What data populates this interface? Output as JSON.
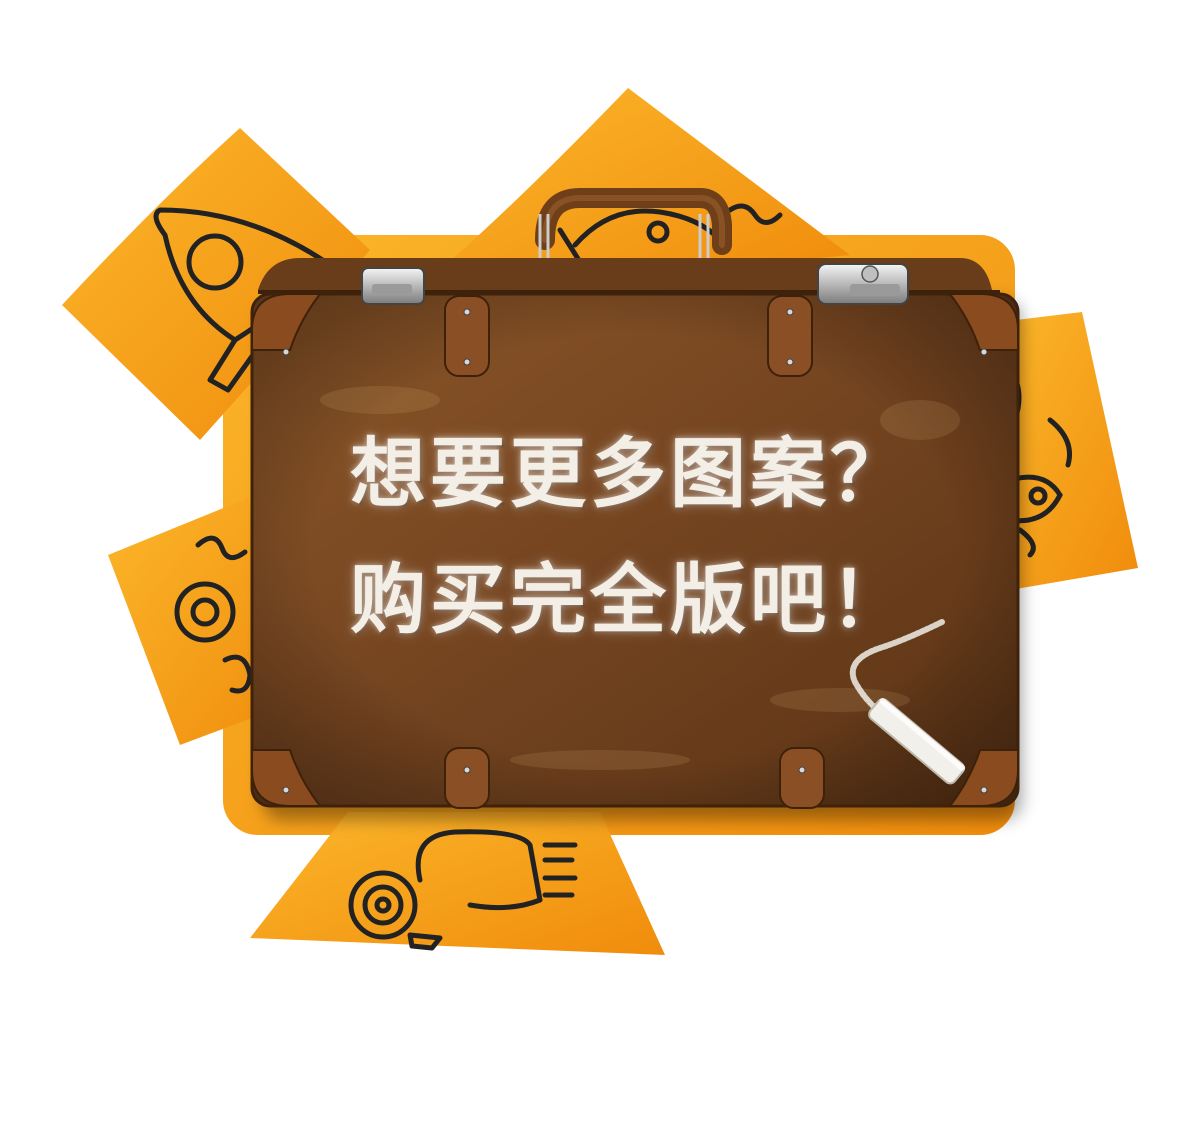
{
  "promo": {
    "line1": "想要更多图案？",
    "line2": "购买完全版吧！"
  },
  "colors": {
    "orange": "#f7a21a",
    "orange_dark": "#e8890a",
    "leather": "#7a4a22",
    "leather_dark": "#4e2c12",
    "strap": "#8a4f24",
    "doodle": "#222222",
    "chalk": "#f2f0ea"
  },
  "icons": [
    "rocket-icon",
    "fish-icon",
    "butterfly-icon",
    "snail-icon",
    "chalk-icon",
    "clasp-icon",
    "handle-icon"
  ]
}
